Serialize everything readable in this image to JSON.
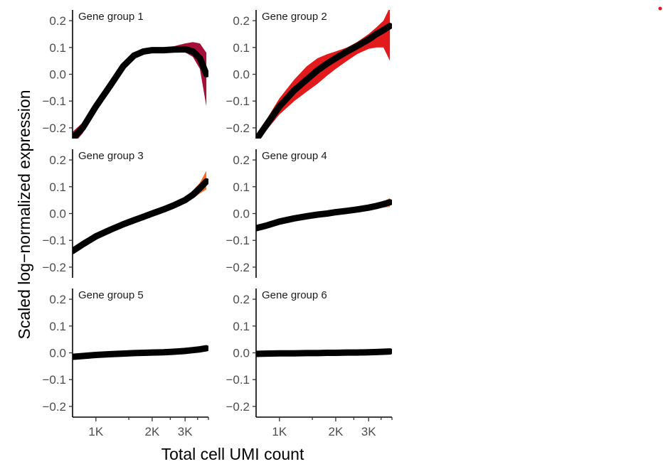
{
  "chart_data": {
    "type": "line",
    "ylabel": "Scaled log−normalized expression",
    "xlabel": "Total cell UMI count",
    "x_scale": "log",
    "xlim": [
      750,
      4000
    ],
    "ylim": [
      -0.24,
      0.24
    ],
    "x_ticks": [
      {
        "value": 1000,
        "label": "1K"
      },
      {
        "value": 2000,
        "label": "2K"
      },
      {
        "value": 3000,
        "label": "3K"
      }
    ],
    "x_minor_ticks": [
      1500,
      2500,
      3500,
      4000
    ],
    "y_ticks": [
      {
        "value": -0.2,
        "label": "−0.2"
      },
      {
        "value": -0.1,
        "label": "−0.1"
      },
      {
        "value": 0.0,
        "label": "0.0"
      },
      {
        "value": 0.1,
        "label": "0.1"
      },
      {
        "value": 0.2,
        "label": "0.2"
      }
    ],
    "grid": false,
    "x": [
      750,
      850,
      1000,
      1200,
      1400,
      1600,
      1800,
      2000,
      2300,
      2600,
      3000,
      3300,
      3600,
      3900
    ],
    "panels": [
      {
        "title": "Gene group 1",
        "color": "#a50f3a",
        "values": [
          -0.24,
          -0.2,
          -0.12,
          -0.04,
          0.03,
          0.07,
          0.085,
          0.09,
          0.09,
          0.092,
          0.093,
          0.085,
          0.06,
          0.0
        ],
        "band_low": [
          -0.265,
          -0.22,
          -0.14,
          -0.06,
          0.015,
          0.06,
          0.078,
          0.082,
          0.082,
          0.083,
          0.082,
          0.065,
          0.02,
          -0.12
        ],
        "band_high": [
          -0.215,
          -0.18,
          -0.1,
          -0.02,
          0.045,
          0.08,
          0.092,
          0.098,
          0.1,
          0.104,
          0.115,
          0.12,
          0.115,
          0.08
        ]
      },
      {
        "title": "Gene group 2",
        "color": "#e31a1c",
        "values": [
          -0.245,
          -0.19,
          -0.12,
          -0.06,
          -0.02,
          0.015,
          0.04,
          0.06,
          0.085,
          0.105,
          0.13,
          0.15,
          0.165,
          0.18
        ],
        "band_low": [
          -0.26,
          -0.21,
          -0.15,
          -0.1,
          -0.065,
          -0.035,
          -0.005,
          0.02,
          0.05,
          0.075,
          0.095,
          0.1,
          0.1,
          0.05
        ],
        "band_high": [
          -0.225,
          -0.17,
          -0.09,
          -0.02,
          0.03,
          0.06,
          0.075,
          0.085,
          0.1,
          0.12,
          0.15,
          0.175,
          0.2,
          0.25
        ]
      },
      {
        "title": "Gene group 3",
        "color": "#f46d2e",
        "values": [
          -0.14,
          -0.115,
          -0.085,
          -0.06,
          -0.04,
          -0.025,
          -0.012,
          0.0,
          0.015,
          0.03,
          0.05,
          0.07,
          0.095,
          0.12
        ],
        "band_low": [
          -0.15,
          -0.125,
          -0.093,
          -0.066,
          -0.046,
          -0.03,
          -0.017,
          -0.004,
          0.01,
          0.022,
          0.04,
          0.055,
          0.075,
          0.09
        ],
        "band_high": [
          -0.13,
          -0.105,
          -0.075,
          -0.052,
          -0.033,
          -0.02,
          -0.007,
          0.004,
          0.02,
          0.038,
          0.06,
          0.085,
          0.115,
          0.16
        ]
      },
      {
        "title": "Gene group 4",
        "color": "#f98b3b",
        "values": [
          -0.055,
          -0.045,
          -0.03,
          -0.018,
          -0.01,
          -0.004,
          0.0,
          0.005,
          0.01,
          0.015,
          0.022,
          0.028,
          0.035,
          0.042
        ],
        "band_low": [
          -0.06,
          -0.049,
          -0.033,
          -0.021,
          -0.013,
          -0.007,
          -0.003,
          0.002,
          0.007,
          0.011,
          0.016,
          0.02,
          0.022,
          0.024
        ],
        "band_high": [
          -0.05,
          -0.041,
          -0.027,
          -0.015,
          -0.007,
          -0.001,
          0.003,
          0.008,
          0.013,
          0.019,
          0.027,
          0.035,
          0.045,
          0.058
        ]
      },
      {
        "title": "Gene group 5",
        "color": "#fdae6b",
        "values": [
          -0.015,
          -0.012,
          -0.008,
          -0.005,
          -0.003,
          -0.001,
          0.0,
          0.001,
          0.002,
          0.004,
          0.007,
          0.01,
          0.013,
          0.017
        ],
        "band_low": [
          -0.018,
          -0.014,
          -0.01,
          -0.007,
          -0.005,
          -0.003,
          -0.002,
          -0.001,
          0.0,
          0.002,
          0.004,
          0.007,
          0.009,
          0.012
        ],
        "band_high": [
          -0.012,
          -0.01,
          -0.006,
          -0.003,
          -0.001,
          0.001,
          0.002,
          0.003,
          0.004,
          0.006,
          0.01,
          0.013,
          0.017,
          0.022
        ]
      },
      {
        "title": "Gene group 6",
        "color": "#fdd0a2",
        "values": [
          -0.004,
          -0.003,
          -0.002,
          -0.002,
          -0.001,
          -0.001,
          0.0,
          0.0,
          0.001,
          0.001,
          0.002,
          0.003,
          0.004,
          0.005
        ],
        "band_low": [
          -0.006,
          -0.005,
          -0.004,
          -0.003,
          -0.003,
          -0.002,
          -0.002,
          -0.001,
          0.0,
          0.0,
          0.001,
          0.001,
          0.002,
          0.003
        ],
        "band_high": [
          -0.002,
          -0.001,
          0.0,
          0.0,
          0.001,
          0.0,
          0.002,
          0.001,
          0.002,
          0.002,
          0.003,
          0.004,
          0.006,
          0.007
        ]
      }
    ]
  },
  "legend_marker": {
    "color": "#e31a1c"
  }
}
